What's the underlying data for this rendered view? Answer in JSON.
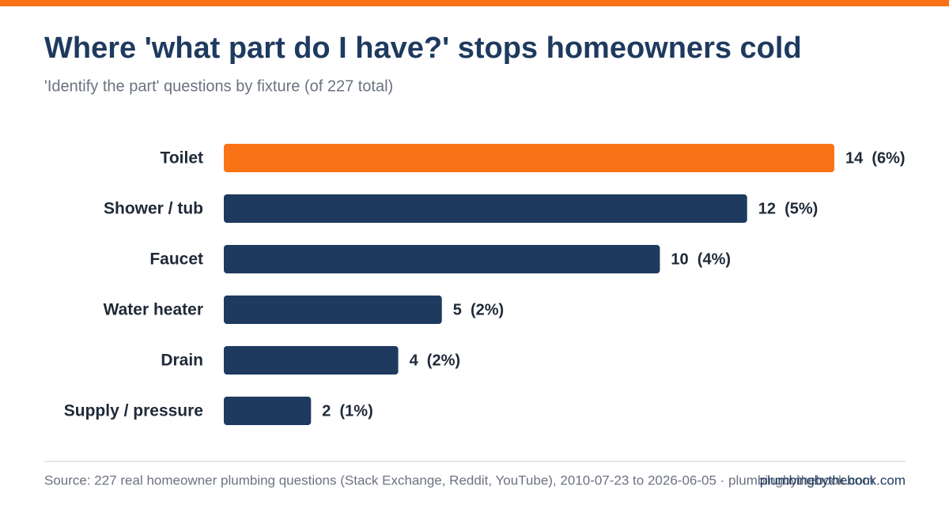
{
  "chart_data": {
    "type": "hbar",
    "title": "Where 'what part do I have?' stops homeowners cold",
    "subtitle": "'Identify the part' questions by fixture (of 227 total)",
    "categories": [
      "Toilet",
      "Shower / tub",
      "Faucet",
      "Water heater",
      "Drain",
      "Supply / pressure"
    ],
    "values": [
      14,
      12,
      10,
      5,
      4,
      2
    ],
    "value_labels": [
      "14  (6%)",
      "12  (5%)",
      "10  (4%)",
      "5  (2%)",
      "4  (2%)",
      "2  (1%)"
    ],
    "colors": [
      "#f97316",
      "#1e3a5f",
      "#1e3a5f",
      "#1e3a5f",
      "#1e3a5f",
      "#1e3a5f"
    ],
    "xlim": [
      0,
      14
    ],
    "source": "Source: 227 real homeowner plumbing questions (Stack Exchange, Reddit, YouTube), 2010-07-23 to 2026-06-05 · plumbingbythebook.com",
    "credit": "plumbingbythebook.com"
  }
}
